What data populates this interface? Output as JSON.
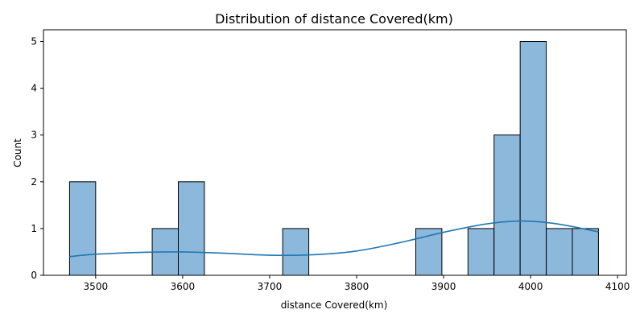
{
  "chart_data": {
    "type": "bar",
    "title": "Distribution of distance Covered(km)",
    "xlabel": "distance Covered(km)",
    "ylabel": "Count",
    "xlim": [
      3440,
      4110
    ],
    "ylim": [
      0,
      5.25
    ],
    "xticks": [
      3500,
      3600,
      3700,
      3800,
      3900,
      4000,
      4100
    ],
    "yticks": [
      0,
      1,
      2,
      3,
      4,
      5
    ],
    "grid": false,
    "bar_color": "#8cb9db",
    "edge_color": "#000000",
    "kde_color": "#1f77b4",
    "bins": [
      {
        "x0": 3470,
        "x1": 3500,
        "count": 2
      },
      {
        "x0": 3565,
        "x1": 3595,
        "count": 1
      },
      {
        "x0": 3595,
        "x1": 3625,
        "count": 2
      },
      {
        "x0": 3715,
        "x1": 3745,
        "count": 1
      },
      {
        "x0": 3868,
        "x1": 3898,
        "count": 1
      },
      {
        "x0": 3928,
        "x1": 3958,
        "count": 1
      },
      {
        "x0": 3958,
        "x1": 3988,
        "count": 3
      },
      {
        "x0": 3988,
        "x1": 4018,
        "count": 5
      },
      {
        "x0": 4018,
        "x1": 4048,
        "count": 1
      },
      {
        "x0": 4048,
        "x1": 4078,
        "count": 1
      }
    ],
    "kde": {
      "x": [
        3470,
        3500,
        3550,
        3600,
        3650,
        3700,
        3750,
        3800,
        3850,
        3900,
        3950,
        3990,
        4030,
        4078
      ],
      "y": [
        0.4,
        0.45,
        0.49,
        0.5,
        0.47,
        0.43,
        0.44,
        0.52,
        0.7,
        0.92,
        1.1,
        1.16,
        1.1,
        0.93
      ]
    }
  }
}
